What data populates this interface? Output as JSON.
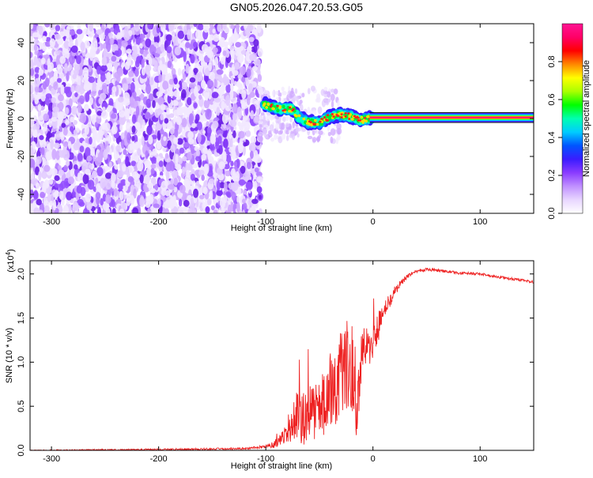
{
  "title": "GN05.2026.047.20.53.G05",
  "chart_data": [
    {
      "type": "heatmap",
      "xlabel": "Height of straight line (km)",
      "ylabel": "Frequency (Hz)",
      "xlim": [
        -320,
        150
      ],
      "ylim": [
        -50,
        50
      ],
      "xticks": [
        -300,
        -200,
        -100,
        0,
        100
      ],
      "yticks": [
        -40,
        -20,
        0,
        20,
        40
      ],
      "colorbar": {
        "label": "Normalized spectral amplitude",
        "range": [
          0.0,
          1.0
        ],
        "ticks": [
          "0.0",
          "0.2",
          "0.4",
          "0.6",
          "0.8"
        ],
        "tick_values": [
          0.0,
          0.2,
          0.4,
          0.6,
          0.8
        ],
        "colors": [
          "#ffffff",
          "#e8d6ff",
          "#c090ff",
          "#8a3bff",
          "#3a1cff",
          "#0055ff",
          "#00ccff",
          "#00ffb0",
          "#00ff00",
          "#aaff00",
          "#ffff00",
          "#ff8800",
          "#ff0000",
          "#ff0066",
          "#ff1493"
        ]
      },
      "regions": {
        "noise_x_range": [
          -320,
          -105
        ],
        "transition_x_range": [
          -105,
          0
        ],
        "stable_tone_x_range": [
          0,
          150
        ],
        "stable_tone_frequency_hz": 0.5
      },
      "peak_track": {
        "x": [
          -103,
          -95,
          -85,
          -75,
          -70,
          -60,
          -50,
          -40,
          -30,
          -20,
          -12,
          -5,
          0
        ],
        "y": [
          8,
          6,
          5,
          5,
          1,
          -2,
          -2,
          1,
          2,
          1,
          -1,
          0,
          0.5
        ]
      }
    },
    {
      "type": "line",
      "xlabel": "Height of straight line (km)",
      "ylabel": "SNR (10 * v/v)",
      "multiplier": "(x10",
      "multiplier_exp": "4",
      "multiplier_close": ")",
      "xlim": [
        -320,
        150
      ],
      "ylim": [
        0.0,
        2.15
      ],
      "xticks": [
        -300,
        -200,
        -100,
        0,
        100
      ],
      "yticks": [
        "0.0",
        "0.5",
        "1.0",
        "1.5",
        "2.0"
      ],
      "ytick_values": [
        0.0,
        0.5,
        1.0,
        1.5,
        2.0
      ],
      "series": [
        {
          "name": "SNR",
          "color": "#ee2222",
          "x": [
            -320,
            -200,
            -120,
            -100,
            -90,
            -85,
            -80,
            -75,
            -70,
            -65,
            -60,
            -55,
            -50,
            -45,
            -40,
            -35,
            -30,
            -25,
            -20,
            -17,
            -15,
            -12,
            -10,
            -5,
            0,
            5,
            10,
            20,
            30,
            40,
            50,
            60,
            80,
            100,
            120,
            150
          ],
          "y": [
            0.0,
            0.01,
            0.02,
            0.04,
            0.08,
            0.14,
            0.18,
            0.3,
            0.4,
            0.35,
            0.45,
            0.4,
            0.55,
            0.5,
            0.7,
            0.65,
            0.85,
            0.9,
            1.0,
            0.85,
            0.35,
            0.95,
            1.1,
            1.15,
            1.25,
            1.4,
            1.55,
            1.8,
            1.95,
            2.03,
            2.05,
            2.04,
            2.01,
            2.0,
            1.96,
            1.91
          ],
          "noise_amplitude": [
            0.005,
            0.01,
            0.01,
            0.02,
            0.05,
            0.08,
            0.12,
            0.22,
            0.28,
            0.3,
            0.32,
            0.3,
            0.35,
            0.35,
            0.4,
            0.4,
            0.55,
            0.55,
            0.6,
            0.5,
            0.3,
            0.35,
            0.35,
            0.25,
            0.22,
            0.18,
            0.12,
            0.06,
            0.03,
            0.02,
            0.02,
            0.015,
            0.015,
            0.015,
            0.015,
            0.015
          ]
        }
      ]
    }
  ]
}
